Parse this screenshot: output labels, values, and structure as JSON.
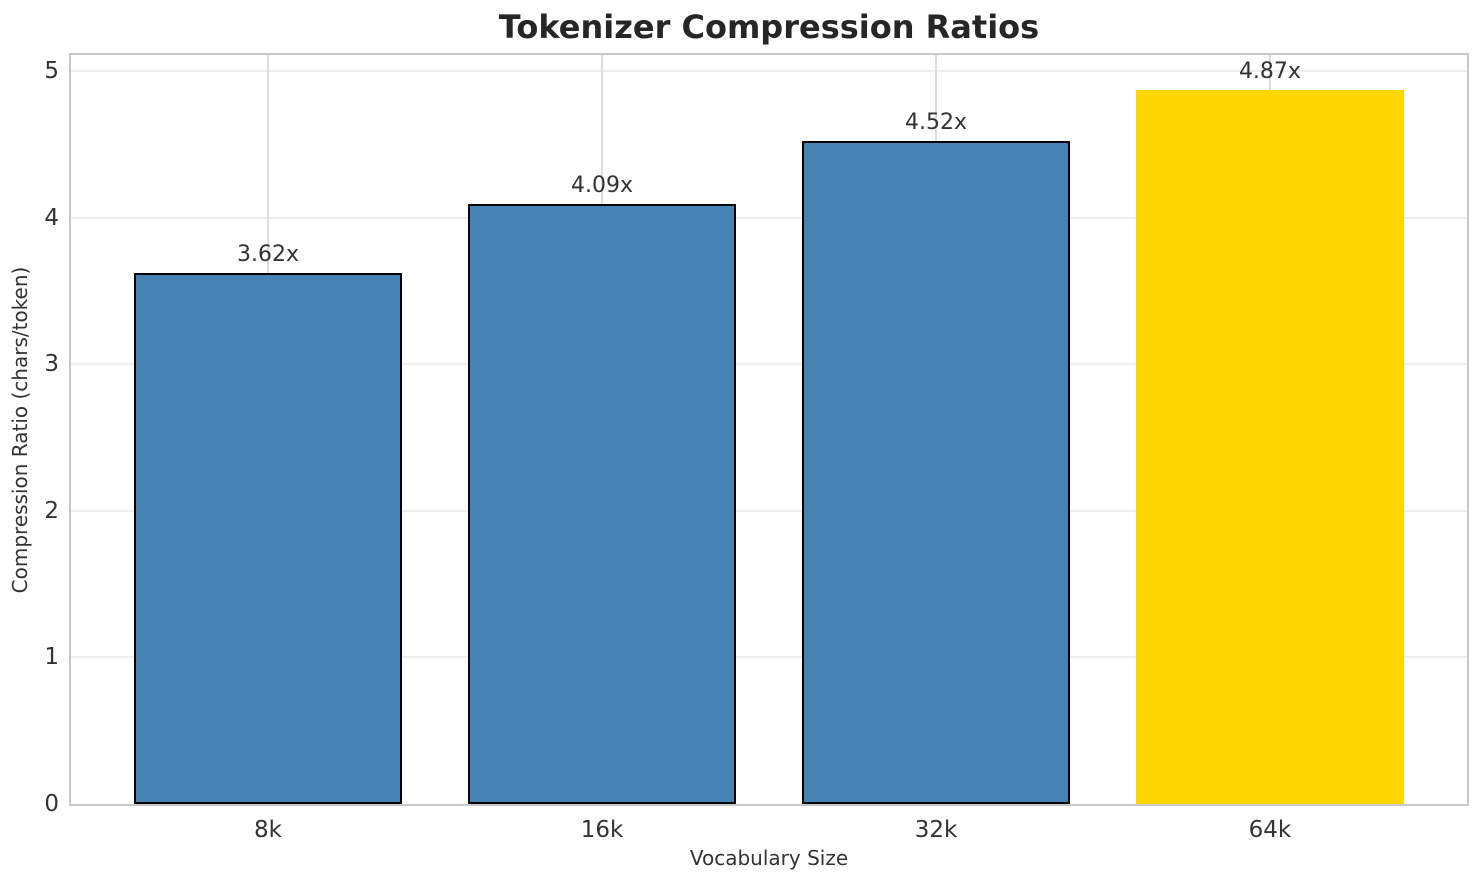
{
  "chart_data": {
    "type": "bar",
    "title": "Tokenizer Compression Ratios",
    "xlabel": "Vocabulary Size",
    "ylabel": "Compression Ratio (chars/token)",
    "categories": [
      "8k",
      "16k",
      "32k",
      "64k"
    ],
    "values": [
      3.62,
      4.09,
      4.52,
      4.87
    ],
    "value_labels": [
      "3.62x",
      "4.09x",
      "4.52x",
      "4.87x"
    ],
    "bar_colors": [
      "#4682B4",
      "#4682B4",
      "#4682B4",
      "#FFD700"
    ],
    "bar_edge_colors": [
      "#000000",
      "#000000",
      "#000000",
      "none"
    ],
    "highlight_index": 3,
    "ylim": [
      0,
      5.109
    ],
    "yticks": [
      0,
      1,
      2,
      3,
      4,
      5
    ],
    "ytick_labels": [
      "0",
      "1",
      "2",
      "3",
      "4",
      "5"
    ],
    "xlim": [
      -0.59,
      3.59
    ],
    "bar_width_fraction": 0.8,
    "grid": true,
    "legend": "none"
  },
  "colors": {
    "bar_blue": "#4682B4",
    "bar_highlight_gold": "#FFD700",
    "grid_horizontal": "#eeeeee",
    "grid_vertical": "#dcdcdc",
    "spine": "#c8c8c8",
    "title_text": "#262626",
    "label_text": "#333333"
  }
}
